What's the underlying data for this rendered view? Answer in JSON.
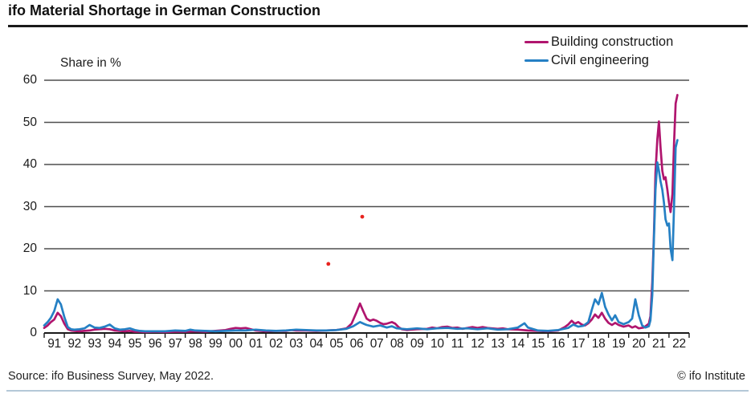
{
  "header": {
    "title": "ifo Material Shortage in German Construction"
  },
  "axis": {
    "y_label": "Share in %"
  },
  "legend": [
    {
      "label": "Building construction",
      "color": "#b0156e"
    },
    {
      "label": "Civil engineering",
      "color": "#2580c4"
    }
  ],
  "footer": {
    "source": "Source: ifo Business Survey, May 2022.",
    "copyright": "© ifo Institute"
  },
  "chart_data": {
    "type": "line",
    "title": "ifo Material Shortage in German Construction",
    "xlabel": "",
    "ylabel": "Share in %",
    "ylim": [
      0,
      60
    ],
    "yticks": [
      0,
      10,
      20,
      30,
      40,
      50,
      60
    ],
    "x_range": [
      1991,
      2023
    ],
    "x_tick_labels": [
      "91",
      "92",
      "93",
      "94",
      "95",
      "96",
      "97",
      "98",
      "99",
      "00",
      "01",
      "02",
      "03",
      "04",
      "05",
      "06",
      "07",
      "08",
      "09",
      "10",
      "11",
      "12",
      "13",
      "14",
      "15",
      "16",
      "17",
      "18",
      "19",
      "20",
      "21",
      "22"
    ],
    "grid": "horizontal-gray",
    "legend_position": "top-right",
    "series": [
      {
        "name": "Building construction",
        "color": "#b0156e",
        "points": [
          [
            1991.0,
            1.2
          ],
          [
            1991.17,
            1.8
          ],
          [
            1991.33,
            2.6
          ],
          [
            1991.5,
            3.2
          ],
          [
            1991.67,
            4.8
          ],
          [
            1991.83,
            4.0
          ],
          [
            1992.0,
            2.2
          ],
          [
            1992.17,
            0.9
          ],
          [
            1992.33,
            0.6
          ],
          [
            1992.5,
            0.5
          ],
          [
            1992.75,
            0.4
          ],
          [
            1993.0,
            0.5
          ],
          [
            1993.25,
            0.6
          ],
          [
            1993.5,
            0.8
          ],
          [
            1993.75,
            0.9
          ],
          [
            1994.0,
            1.0
          ],
          [
            1994.25,
            0.9
          ],
          [
            1994.5,
            0.6
          ],
          [
            1994.75,
            0.5
          ],
          [
            1995.0,
            0.4
          ],
          [
            1995.25,
            0.5
          ],
          [
            1995.5,
            0.3
          ],
          [
            1995.75,
            0.3
          ],
          [
            1996.0,
            0.2
          ],
          [
            1996.5,
            0.3
          ],
          [
            1997.0,
            0.2
          ],
          [
            1997.5,
            0.3
          ],
          [
            1998.0,
            0.3
          ],
          [
            1998.5,
            0.4
          ],
          [
            1999.0,
            0.3
          ],
          [
            1999.5,
            0.5
          ],
          [
            2000.0,
            0.7
          ],
          [
            2000.25,
            1.0
          ],
          [
            2000.5,
            1.2
          ],
          [
            2000.75,
            1.1
          ],
          [
            2001.0,
            1.2
          ],
          [
            2001.25,
            0.9
          ],
          [
            2001.5,
            0.6
          ],
          [
            2001.75,
            0.5
          ],
          [
            2002.0,
            0.4
          ],
          [
            2002.5,
            0.5
          ],
          [
            2003.0,
            0.5
          ],
          [
            2003.25,
            0.7
          ],
          [
            2003.5,
            0.6
          ],
          [
            2004.0,
            0.6
          ],
          [
            2004.5,
            0.5
          ],
          [
            2005.0,
            0.6
          ],
          [
            2005.5,
            0.7
          ],
          [
            2005.75,
            0.9
          ],
          [
            2006.0,
            1.1
          ],
          [
            2006.25,
            2.2
          ],
          [
            2006.5,
            5.0
          ],
          [
            2006.67,
            7.0
          ],
          [
            2006.83,
            5.2
          ],
          [
            2007.0,
            3.4
          ],
          [
            2007.17,
            2.9
          ],
          [
            2007.33,
            3.2
          ],
          [
            2007.5,
            2.9
          ],
          [
            2007.67,
            2.4
          ],
          [
            2007.83,
            2.1
          ],
          [
            2008.0,
            2.2
          ],
          [
            2008.25,
            2.6
          ],
          [
            2008.42,
            2.2
          ],
          [
            2008.58,
            1.4
          ],
          [
            2008.75,
            0.9
          ],
          [
            2009.0,
            0.7
          ],
          [
            2009.5,
            0.9
          ],
          [
            2010.0,
            1.0
          ],
          [
            2010.25,
            1.3
          ],
          [
            2010.5,
            1.1
          ],
          [
            2010.75,
            1.4
          ],
          [
            2011.0,
            1.5
          ],
          [
            2011.25,
            1.2
          ],
          [
            2011.5,
            1.3
          ],
          [
            2011.75,
            1.0
          ],
          [
            2012.0,
            1.2
          ],
          [
            2012.25,
            1.4
          ],
          [
            2012.5,
            1.2
          ],
          [
            2012.75,
            1.4
          ],
          [
            2013.0,
            1.2
          ],
          [
            2013.5,
            1.0
          ],
          [
            2013.75,
            1.1
          ],
          [
            2014.0,
            0.9
          ],
          [
            2014.5,
            0.8
          ],
          [
            2015.0,
            0.6
          ],
          [
            2015.5,
            0.5
          ],
          [
            2016.0,
            0.4
          ],
          [
            2016.5,
            0.6
          ],
          [
            2016.83,
            1.4
          ],
          [
            2017.0,
            2.0
          ],
          [
            2017.17,
            2.9
          ],
          [
            2017.33,
            2.2
          ],
          [
            2017.5,
            2.6
          ],
          [
            2017.67,
            2.0
          ],
          [
            2017.83,
            1.8
          ],
          [
            2018.0,
            2.3
          ],
          [
            2018.17,
            3.2
          ],
          [
            2018.33,
            4.4
          ],
          [
            2018.5,
            3.6
          ],
          [
            2018.67,
            4.8
          ],
          [
            2018.83,
            3.4
          ],
          [
            2019.0,
            2.4
          ],
          [
            2019.17,
            1.9
          ],
          [
            2019.33,
            2.4
          ],
          [
            2019.5,
            1.9
          ],
          [
            2019.75,
            1.5
          ],
          [
            2020.0,
            1.8
          ],
          [
            2020.17,
            1.3
          ],
          [
            2020.33,
            1.6
          ],
          [
            2020.5,
            1.1
          ],
          [
            2020.75,
            1.3
          ],
          [
            2021.0,
            2.2
          ],
          [
            2021.08,
            4.0
          ],
          [
            2021.17,
            12.0
          ],
          [
            2021.25,
            23.0
          ],
          [
            2021.33,
            38.0
          ],
          [
            2021.42,
            46.0
          ],
          [
            2021.5,
            50.2
          ],
          [
            2021.58,
            44.0
          ],
          [
            2021.67,
            38.5
          ],
          [
            2021.75,
            36.5
          ],
          [
            2021.83,
            37.0
          ],
          [
            2021.92,
            34.0
          ],
          [
            2022.0,
            31.0
          ],
          [
            2022.08,
            28.7
          ],
          [
            2022.17,
            33.0
          ],
          [
            2022.25,
            45.0
          ],
          [
            2022.33,
            54.5
          ],
          [
            2022.42,
            56.5
          ]
        ]
      },
      {
        "name": "Civil engineering",
        "color": "#2580c4",
        "points": [
          [
            1991.0,
            1.8
          ],
          [
            1991.17,
            2.6
          ],
          [
            1991.33,
            3.6
          ],
          [
            1991.5,
            5.2
          ],
          [
            1991.67,
            8.0
          ],
          [
            1991.83,
            6.8
          ],
          [
            1992.0,
            3.8
          ],
          [
            1992.17,
            1.4
          ],
          [
            1992.33,
            0.9
          ],
          [
            1992.5,
            0.8
          ],
          [
            1992.75,
            0.9
          ],
          [
            1993.0,
            1.1
          ],
          [
            1993.25,
            1.9
          ],
          [
            1993.5,
            1.3
          ],
          [
            1993.75,
            1.2
          ],
          [
            1994.0,
            1.5
          ],
          [
            1994.25,
            2.0
          ],
          [
            1994.5,
            1.1
          ],
          [
            1994.75,
            0.8
          ],
          [
            1995.0,
            0.9
          ],
          [
            1995.25,
            1.1
          ],
          [
            1995.5,
            0.7
          ],
          [
            1995.75,
            0.5
          ],
          [
            1996.0,
            0.4
          ],
          [
            1996.5,
            0.4
          ],
          [
            1997.0,
            0.4
          ],
          [
            1997.5,
            0.6
          ],
          [
            1998.0,
            0.5
          ],
          [
            1998.25,
            0.8
          ],
          [
            1998.5,
            0.6
          ],
          [
            1999.0,
            0.5
          ],
          [
            1999.5,
            0.4
          ],
          [
            2000.0,
            0.5
          ],
          [
            2000.5,
            0.6
          ],
          [
            2001.0,
            0.6
          ],
          [
            2001.5,
            0.8
          ],
          [
            2002.0,
            0.6
          ],
          [
            2002.5,
            0.5
          ],
          [
            2003.0,
            0.6
          ],
          [
            2003.5,
            0.8
          ],
          [
            2004.0,
            0.7
          ],
          [
            2004.5,
            0.6
          ],
          [
            2005.0,
            0.6
          ],
          [
            2005.5,
            0.7
          ],
          [
            2006.0,
            1.0
          ],
          [
            2006.33,
            1.6
          ],
          [
            2006.67,
            2.6
          ],
          [
            2006.9,
            2.1
          ],
          [
            2007.0,
            1.9
          ],
          [
            2007.33,
            1.5
          ],
          [
            2007.67,
            1.8
          ],
          [
            2008.0,
            1.3
          ],
          [
            2008.25,
            1.6
          ],
          [
            2008.5,
            1.1
          ],
          [
            2009.0,
            0.9
          ],
          [
            2009.5,
            1.1
          ],
          [
            2010.0,
            0.9
          ],
          [
            2010.5,
            1.1
          ],
          [
            2011.0,
            1.2
          ],
          [
            2011.5,
            1.0
          ],
          [
            2012.0,
            1.1
          ],
          [
            2012.5,
            0.9
          ],
          [
            2013.0,
            1.1
          ],
          [
            2013.5,
            0.8
          ],
          [
            2014.0,
            0.9
          ],
          [
            2014.5,
            1.3
          ],
          [
            2014.83,
            2.3
          ],
          [
            2015.0,
            1.3
          ],
          [
            2015.5,
            0.6
          ],
          [
            2016.0,
            0.5
          ],
          [
            2016.5,
            0.7
          ],
          [
            2017.0,
            1.2
          ],
          [
            2017.25,
            2.0
          ],
          [
            2017.5,
            1.5
          ],
          [
            2017.75,
            1.7
          ],
          [
            2018.0,
            2.6
          ],
          [
            2018.17,
            5.5
          ],
          [
            2018.33,
            8.0
          ],
          [
            2018.5,
            6.8
          ],
          [
            2018.67,
            9.5
          ],
          [
            2018.83,
            6.2
          ],
          [
            2019.0,
            4.4
          ],
          [
            2019.17,
            3.0
          ],
          [
            2019.33,
            4.2
          ],
          [
            2019.5,
            2.6
          ],
          [
            2019.75,
            2.1
          ],
          [
            2020.0,
            2.6
          ],
          [
            2020.17,
            3.4
          ],
          [
            2020.33,
            8.0
          ],
          [
            2020.5,
            4.2
          ],
          [
            2020.67,
            1.8
          ],
          [
            2020.83,
            1.3
          ],
          [
            2021.0,
            1.6
          ],
          [
            2021.08,
            3.0
          ],
          [
            2021.17,
            9.0
          ],
          [
            2021.25,
            22.0
          ],
          [
            2021.33,
            34.0
          ],
          [
            2021.42,
            40.5
          ],
          [
            2021.5,
            38.5
          ],
          [
            2021.58,
            36.0
          ],
          [
            2021.67,
            34.0
          ],
          [
            2021.75,
            31.0
          ],
          [
            2021.83,
            27.0
          ],
          [
            2021.92,
            25.5
          ],
          [
            2022.0,
            26.0
          ],
          [
            2022.08,
            20.0
          ],
          [
            2022.17,
            17.3
          ],
          [
            2022.25,
            30.0
          ],
          [
            2022.33,
            44.0
          ],
          [
            2022.42,
            45.8
          ]
        ]
      }
    ],
    "stray_dots": {
      "color": "#e8231f",
      "points": [
        [
          2005.1,
          16.4
        ],
        [
          2006.78,
          27.6
        ]
      ]
    },
    "colors": {
      "gridline": "#4e4e4e",
      "axis": "#1a1a1a",
      "footer_rule": "#b4c8d8"
    }
  }
}
